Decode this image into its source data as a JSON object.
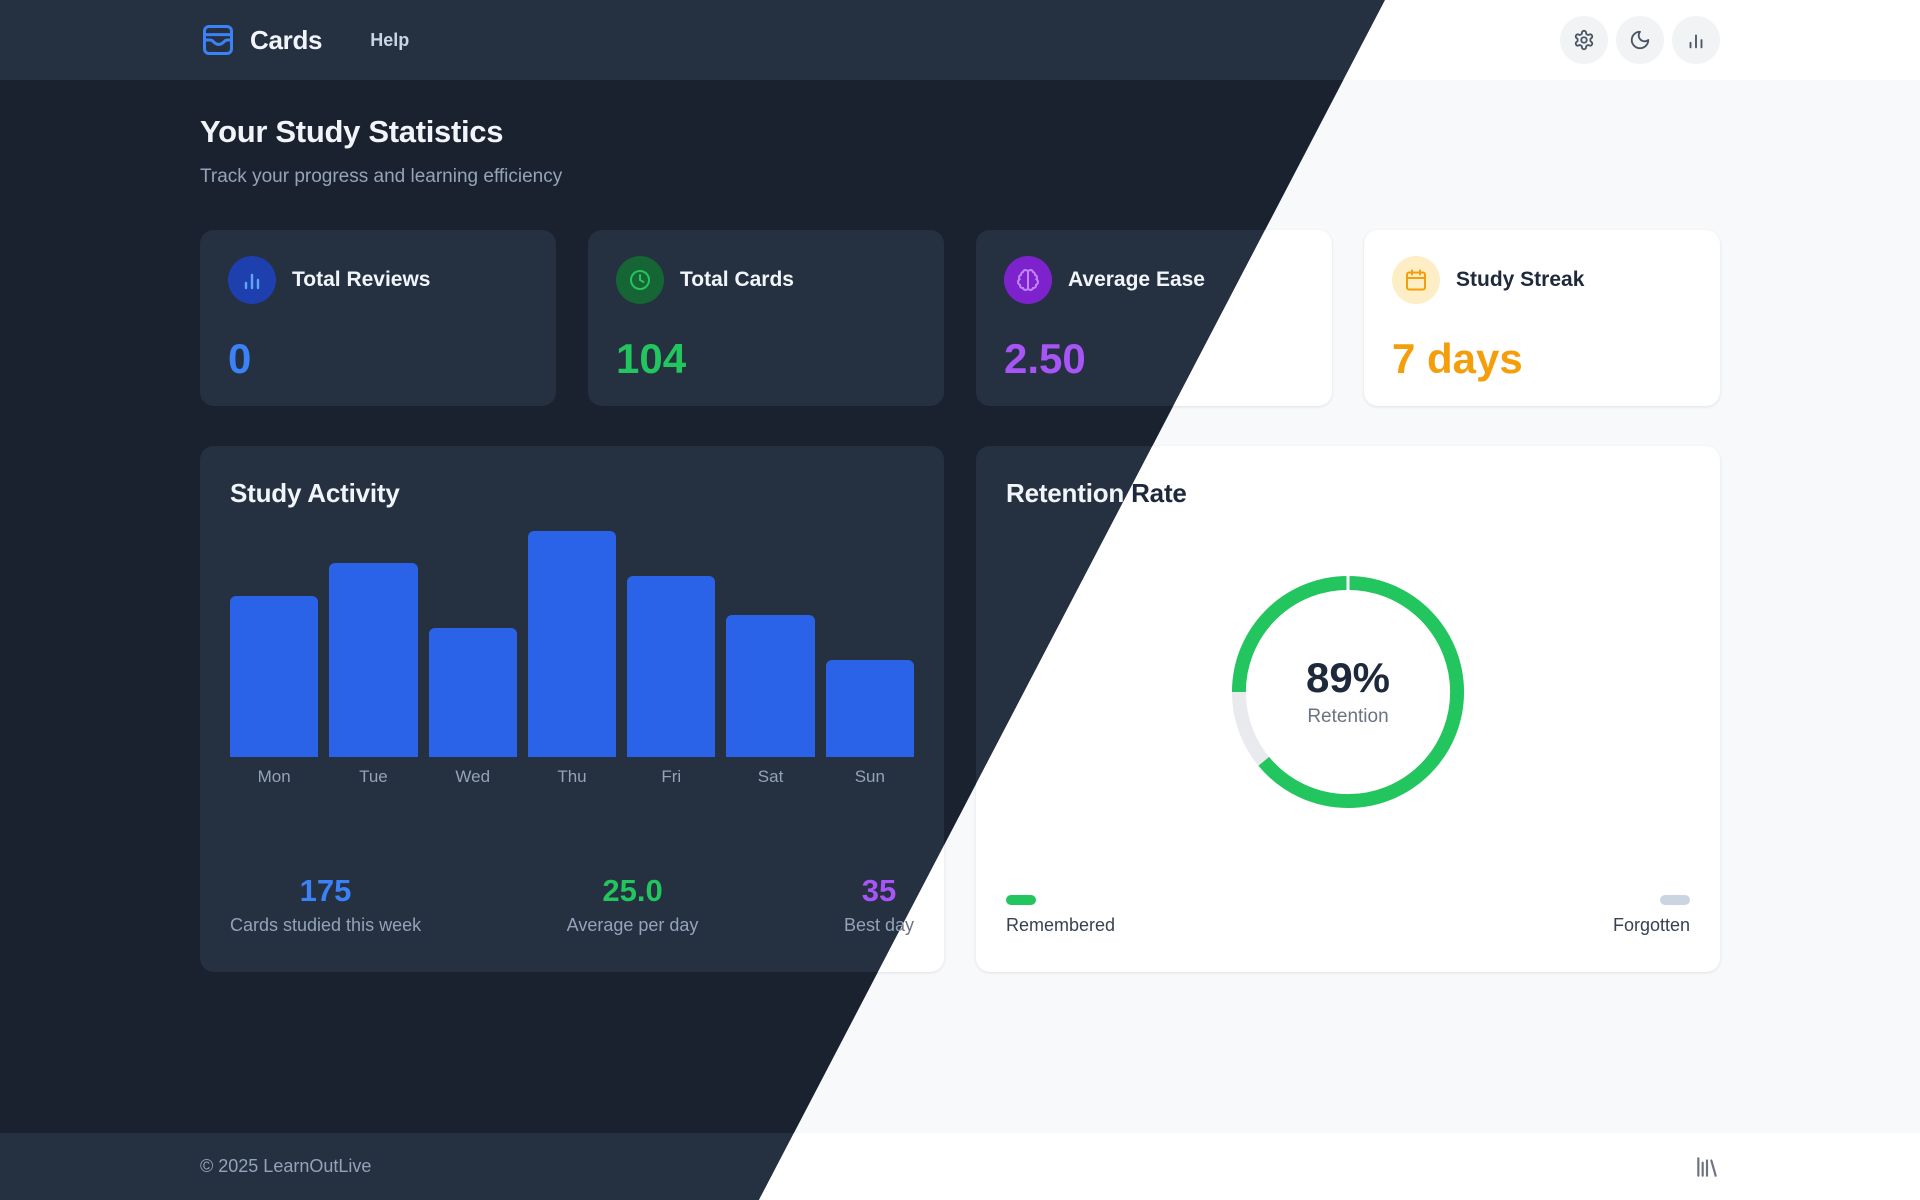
{
  "brand": {
    "name": "Cards"
  },
  "nav": {
    "help_label": "Help",
    "buttons": [
      {
        "name": "settings",
        "icon": "gear-icon"
      },
      {
        "name": "theme-toggle",
        "icon": "moon-icon"
      },
      {
        "name": "statistics",
        "icon": "bar-chart-icon"
      }
    ]
  },
  "header": {
    "title": "Your Study Statistics",
    "subtitle": "Track your progress and learning efficiency"
  },
  "stats": [
    {
      "label": "Total Reviews",
      "value": "0",
      "icon": "bar-chart-icon",
      "accent": "#3b82f6"
    },
    {
      "label": "Total Cards",
      "value": "104",
      "icon": "clock-icon",
      "accent": "#22c55e"
    },
    {
      "label": "Average Ease",
      "value": "2.50",
      "icon": "brain-icon",
      "accent": "#a855f7"
    },
    {
      "label": "Study Streak",
      "value": "7 days",
      "icon": "calendar-icon",
      "accent": "#f59e0b"
    }
  ],
  "footer": {
    "copyright": "© 2025 LearnOutLive",
    "icon": "library-icon"
  },
  "theme": {
    "split": "diagonal: dark theme left, light theme right",
    "dark_background": "#1a2230",
    "dark_surface": "#253041",
    "light_background": "#f8f9fb",
    "light_surface": "#ffffff",
    "bar_blue": "#2b63e8",
    "accent_blue": "#3b82f6",
    "accent_green": "#22c55e",
    "accent_purple": "#a855f7",
    "accent_orange": "#f59e0b"
  },
  "chart_data": [
    {
      "type": "bar",
      "title": "Study Activity",
      "categories": [
        "Mon",
        "Tue",
        "Wed",
        "Thu",
        "Fri",
        "Sat",
        "Sun"
      ],
      "values": [
        25,
        30,
        20,
        35,
        28,
        22,
        15
      ],
      "ylim": [
        0,
        35
      ],
      "grid": false,
      "bar_color": "#2b63e8",
      "summary": [
        {
          "value": "175",
          "label": "Cards studied this week",
          "color": "#3b82f6"
        },
        {
          "value": "25.0",
          "label": "Average per day",
          "color": "#22c55e"
        },
        {
          "value": "35",
          "label": "Best day",
          "color": "#a855f7"
        }
      ]
    },
    {
      "type": "pie",
      "title": "Retention Rate",
      "labels": [
        "Remembered",
        "Forgotten"
      ],
      "values": [
        89,
        11
      ],
      "colors": [
        "#22c55e",
        "#d1d5db"
      ],
      "center_value": "89%",
      "center_label": "Retention",
      "legend_position": "bottom"
    }
  ]
}
